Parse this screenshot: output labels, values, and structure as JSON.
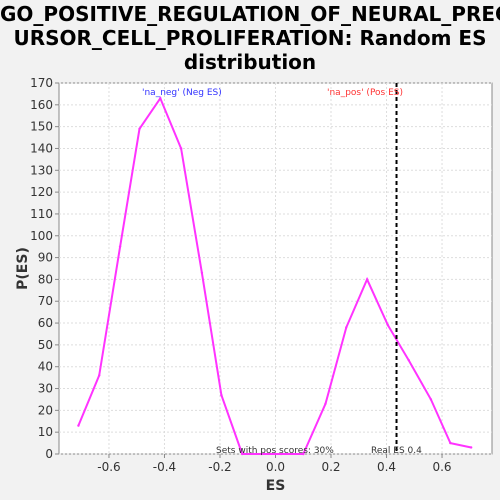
{
  "chart_data": {
    "type": "line",
    "title": "GO_POSITIVE_REGULATION_OF_NEURAL_PREC\nURSOR_CELL_PROLIFERATION: Random ES\ndistribution",
    "xlabel": "ES",
    "ylabel": "P(ES)",
    "xlim": [
      -0.78,
      0.78
    ],
    "ylim": [
      0,
      170
    ],
    "x_ticks": [
      -0.6,
      -0.4,
      -0.2,
      0.0,
      0.2,
      0.4,
      0.6
    ],
    "x_tick_labels": [
      "-0.6",
      "-0.4",
      "-0.2",
      "0.0",
      "0.2",
      "0.4",
      "0.6"
    ],
    "y_ticks": [
      0,
      10,
      20,
      30,
      40,
      50,
      60,
      70,
      80,
      90,
      100,
      110,
      120,
      130,
      140,
      150,
      160,
      170
    ],
    "y_tick_labels": [
      "0",
      "10",
      "20",
      "30",
      "40",
      "50",
      "60",
      "70",
      "80",
      "90",
      "100",
      "110",
      "120",
      "130",
      "140",
      "150",
      "160",
      "170"
    ],
    "grid": true,
    "series": [
      {
        "name": "'na_neg' (Neg ES)",
        "color": "#ff33ff",
        "x": [
          -0.71,
          -0.635,
          -0.56,
          -0.49,
          -0.415,
          -0.34,
          -0.265,
          -0.195,
          -0.12,
          -0.05,
          0.02,
          0.1
        ],
        "values": [
          13,
          36,
          95,
          149,
          163,
          140,
          83,
          27,
          0,
          0,
          0,
          0
        ]
      },
      {
        "name": "'na_pos' (Pos ES)",
        "color": "#ff33ff",
        "x": [
          0.1,
          0.18,
          0.255,
          0.33,
          0.405,
          0.48,
          0.56,
          0.63,
          0.705
        ],
        "values": [
          0,
          23,
          58,
          80,
          59,
          43,
          25,
          5,
          3
        ]
      }
    ],
    "legend": [
      {
        "label": "'na_neg' (Neg ES)",
        "color": "#3333ff"
      },
      {
        "label": "'na_pos' (Pos ES)",
        "color": "#ff3333"
      }
    ],
    "real_es": 0.436,
    "annotations": {
      "pos_scores": "Sets with pos scores: 30%",
      "real_es": "Real ES 0.4"
    }
  }
}
